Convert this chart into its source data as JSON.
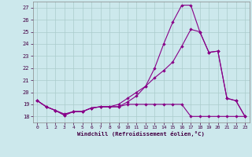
{
  "background_color": "#cce8ec",
  "grid_color": "#aacccc",
  "line_color": "#880088",
  "xlabel": "Windchill (Refroidissement éolien,°C)",
  "ylim": [
    17.5,
    27.5
  ],
  "xlim": [
    -0.5,
    23.5
  ],
  "yticks": [
    18,
    19,
    20,
    21,
    22,
    23,
    24,
    25,
    26,
    27
  ],
  "xticks": [
    0,
    1,
    2,
    3,
    4,
    5,
    6,
    7,
    8,
    9,
    10,
    11,
    12,
    13,
    14,
    15,
    16,
    17,
    18,
    19,
    20,
    21,
    22,
    23
  ],
  "series1_x": [
    0,
    1,
    2,
    3,
    4,
    5,
    6,
    7,
    8,
    9,
    10,
    11,
    12,
    13,
    14,
    15,
    16,
    17,
    18,
    19,
    20,
    21,
    22,
    23
  ],
  "series1_y": [
    19.3,
    18.8,
    18.5,
    18.1,
    18.4,
    18.4,
    18.7,
    18.8,
    18.8,
    18.8,
    19.0,
    19.0,
    19.0,
    19.0,
    19.0,
    19.0,
    19.0,
    18.0,
    18.0,
    18.0,
    18.0,
    18.0,
    18.0,
    18.0
  ],
  "series2_x": [
    0,
    1,
    2,
    3,
    4,
    5,
    6,
    7,
    8,
    9,
    10,
    11,
    12,
    13,
    14,
    15,
    16,
    17,
    18,
    19,
    20,
    21,
    22,
    23
  ],
  "series2_y": [
    19.3,
    18.8,
    18.5,
    18.1,
    18.4,
    18.4,
    18.7,
    18.8,
    18.8,
    18.8,
    19.2,
    19.7,
    20.5,
    22.0,
    24.0,
    25.8,
    27.2,
    27.2,
    25.0,
    23.3,
    23.4,
    19.5,
    19.3,
    18.0
  ],
  "series3_x": [
    0,
    1,
    2,
    3,
    4,
    5,
    6,
    7,
    8,
    9,
    10,
    11,
    12,
    13,
    14,
    15,
    16,
    17,
    18,
    19,
    20,
    21,
    22,
    23
  ],
  "series3_y": [
    19.3,
    18.8,
    18.5,
    18.2,
    18.4,
    18.4,
    18.7,
    18.8,
    18.8,
    19.0,
    19.5,
    20.0,
    20.5,
    21.2,
    21.8,
    22.5,
    23.8,
    25.2,
    25.0,
    23.3,
    23.4,
    19.5,
    19.3,
    18.0
  ]
}
